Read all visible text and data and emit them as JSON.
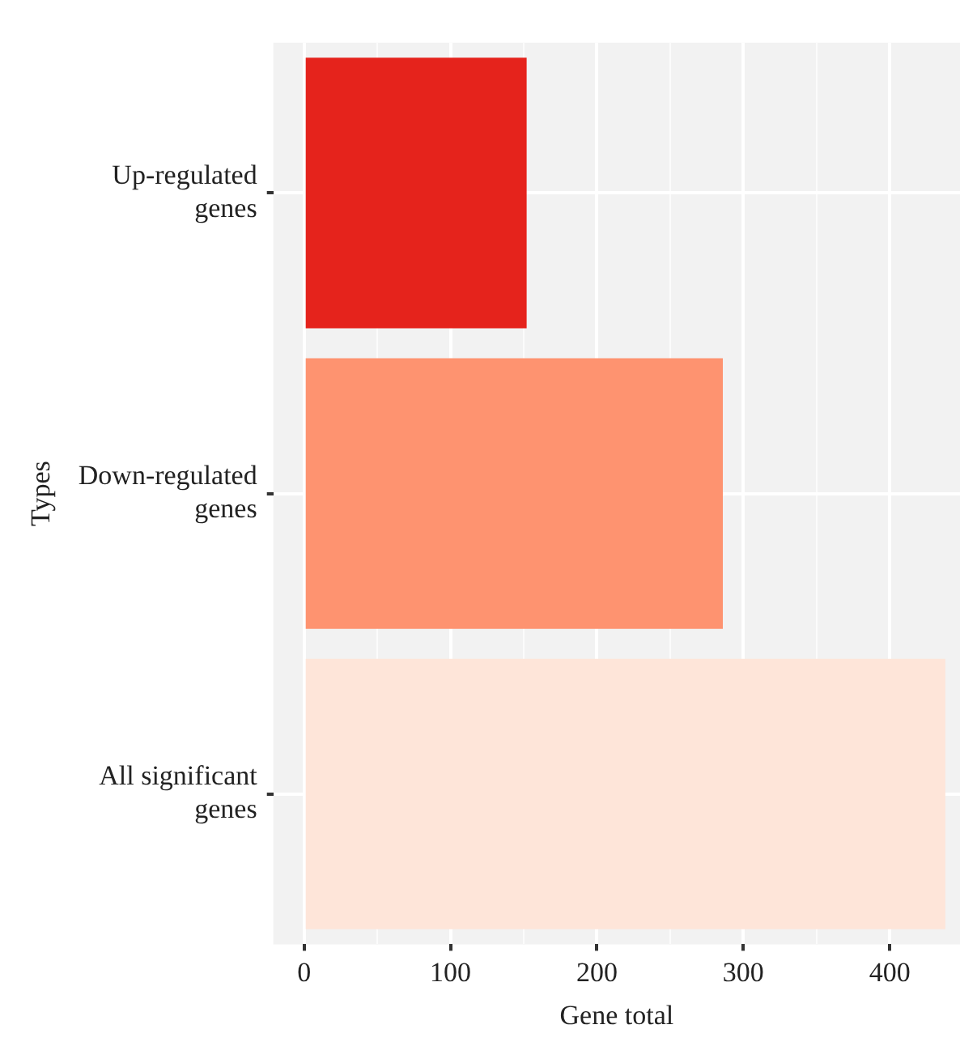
{
  "chart_data": {
    "type": "bar",
    "orientation": "horizontal",
    "xlabel": "Gene total",
    "ylabel": "Types",
    "categories": [
      "Up-regulated genes",
      "Down-regulated genes",
      "All significant genes"
    ],
    "values": [
      152,
      286,
      438
    ],
    "colors": [
      "#e5231c",
      "#fe9370",
      "#fee5d9"
    ],
    "xlim": [
      -21,
      448
    ],
    "xticks": [
      0,
      {
        "value": 50,
        "label": null
      },
      100,
      {
        "value": 150,
        "label": null
      },
      200,
      {
        "value": 250,
        "label": null
      },
      300,
      {
        "value": 350,
        "label": null
      },
      400
    ],
    "grid": true,
    "legend": false
  }
}
